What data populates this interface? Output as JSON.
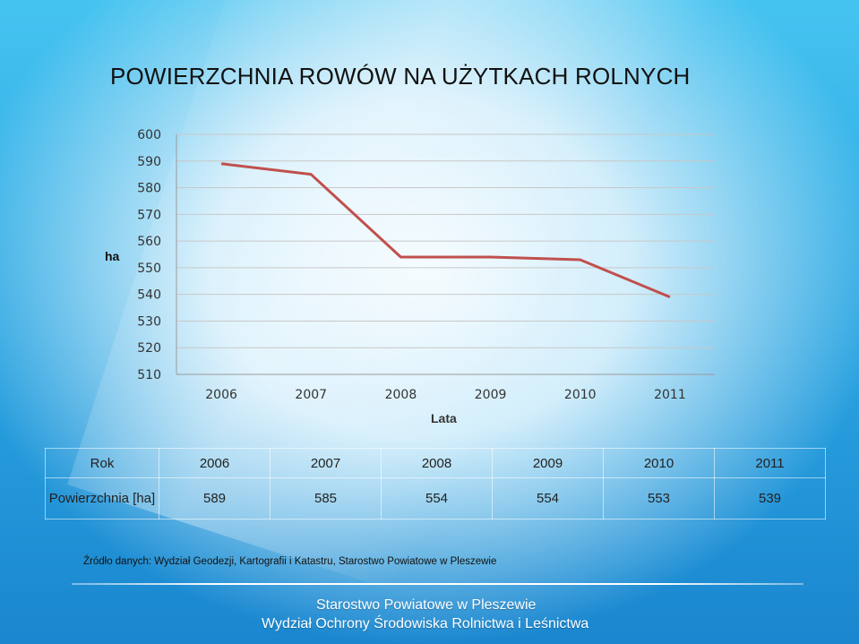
{
  "title": "POWIERZCHNIA ROWÓW NA UŻYTKACH ROLNYCH",
  "chart_data": {
    "type": "line",
    "xlabel": "Lata",
    "ylabel": "ha",
    "ylim": [
      510,
      600
    ],
    "yticks": [
      510,
      520,
      530,
      540,
      550,
      560,
      570,
      580,
      590,
      600
    ],
    "categories": [
      "2006",
      "2007",
      "2008",
      "2009",
      "2010",
      "2011"
    ],
    "series": [
      {
        "values": [
          589,
          585,
          554,
          554,
          553,
          539
        ],
        "color": "#c0504d"
      }
    ],
    "grid": true
  },
  "table": {
    "header_label": "Rok",
    "row_label": "Powierzchnia [ha]",
    "years": [
      "2006",
      "2007",
      "2008",
      "2009",
      "2010",
      "2011"
    ],
    "values": [
      "589",
      "585",
      "554",
      "554",
      "553",
      "539"
    ]
  },
  "source": "Źródło danych: Wydział Geodezji, Kartografii i Katastru, Starostwo Powiatowe w Pleszewie",
  "footer": {
    "line1": "Starostwo Powiatowe w Pleszewie",
    "line2": "Wydział Ochrony Środowiska Rolnictwa i Leśnictwa"
  }
}
